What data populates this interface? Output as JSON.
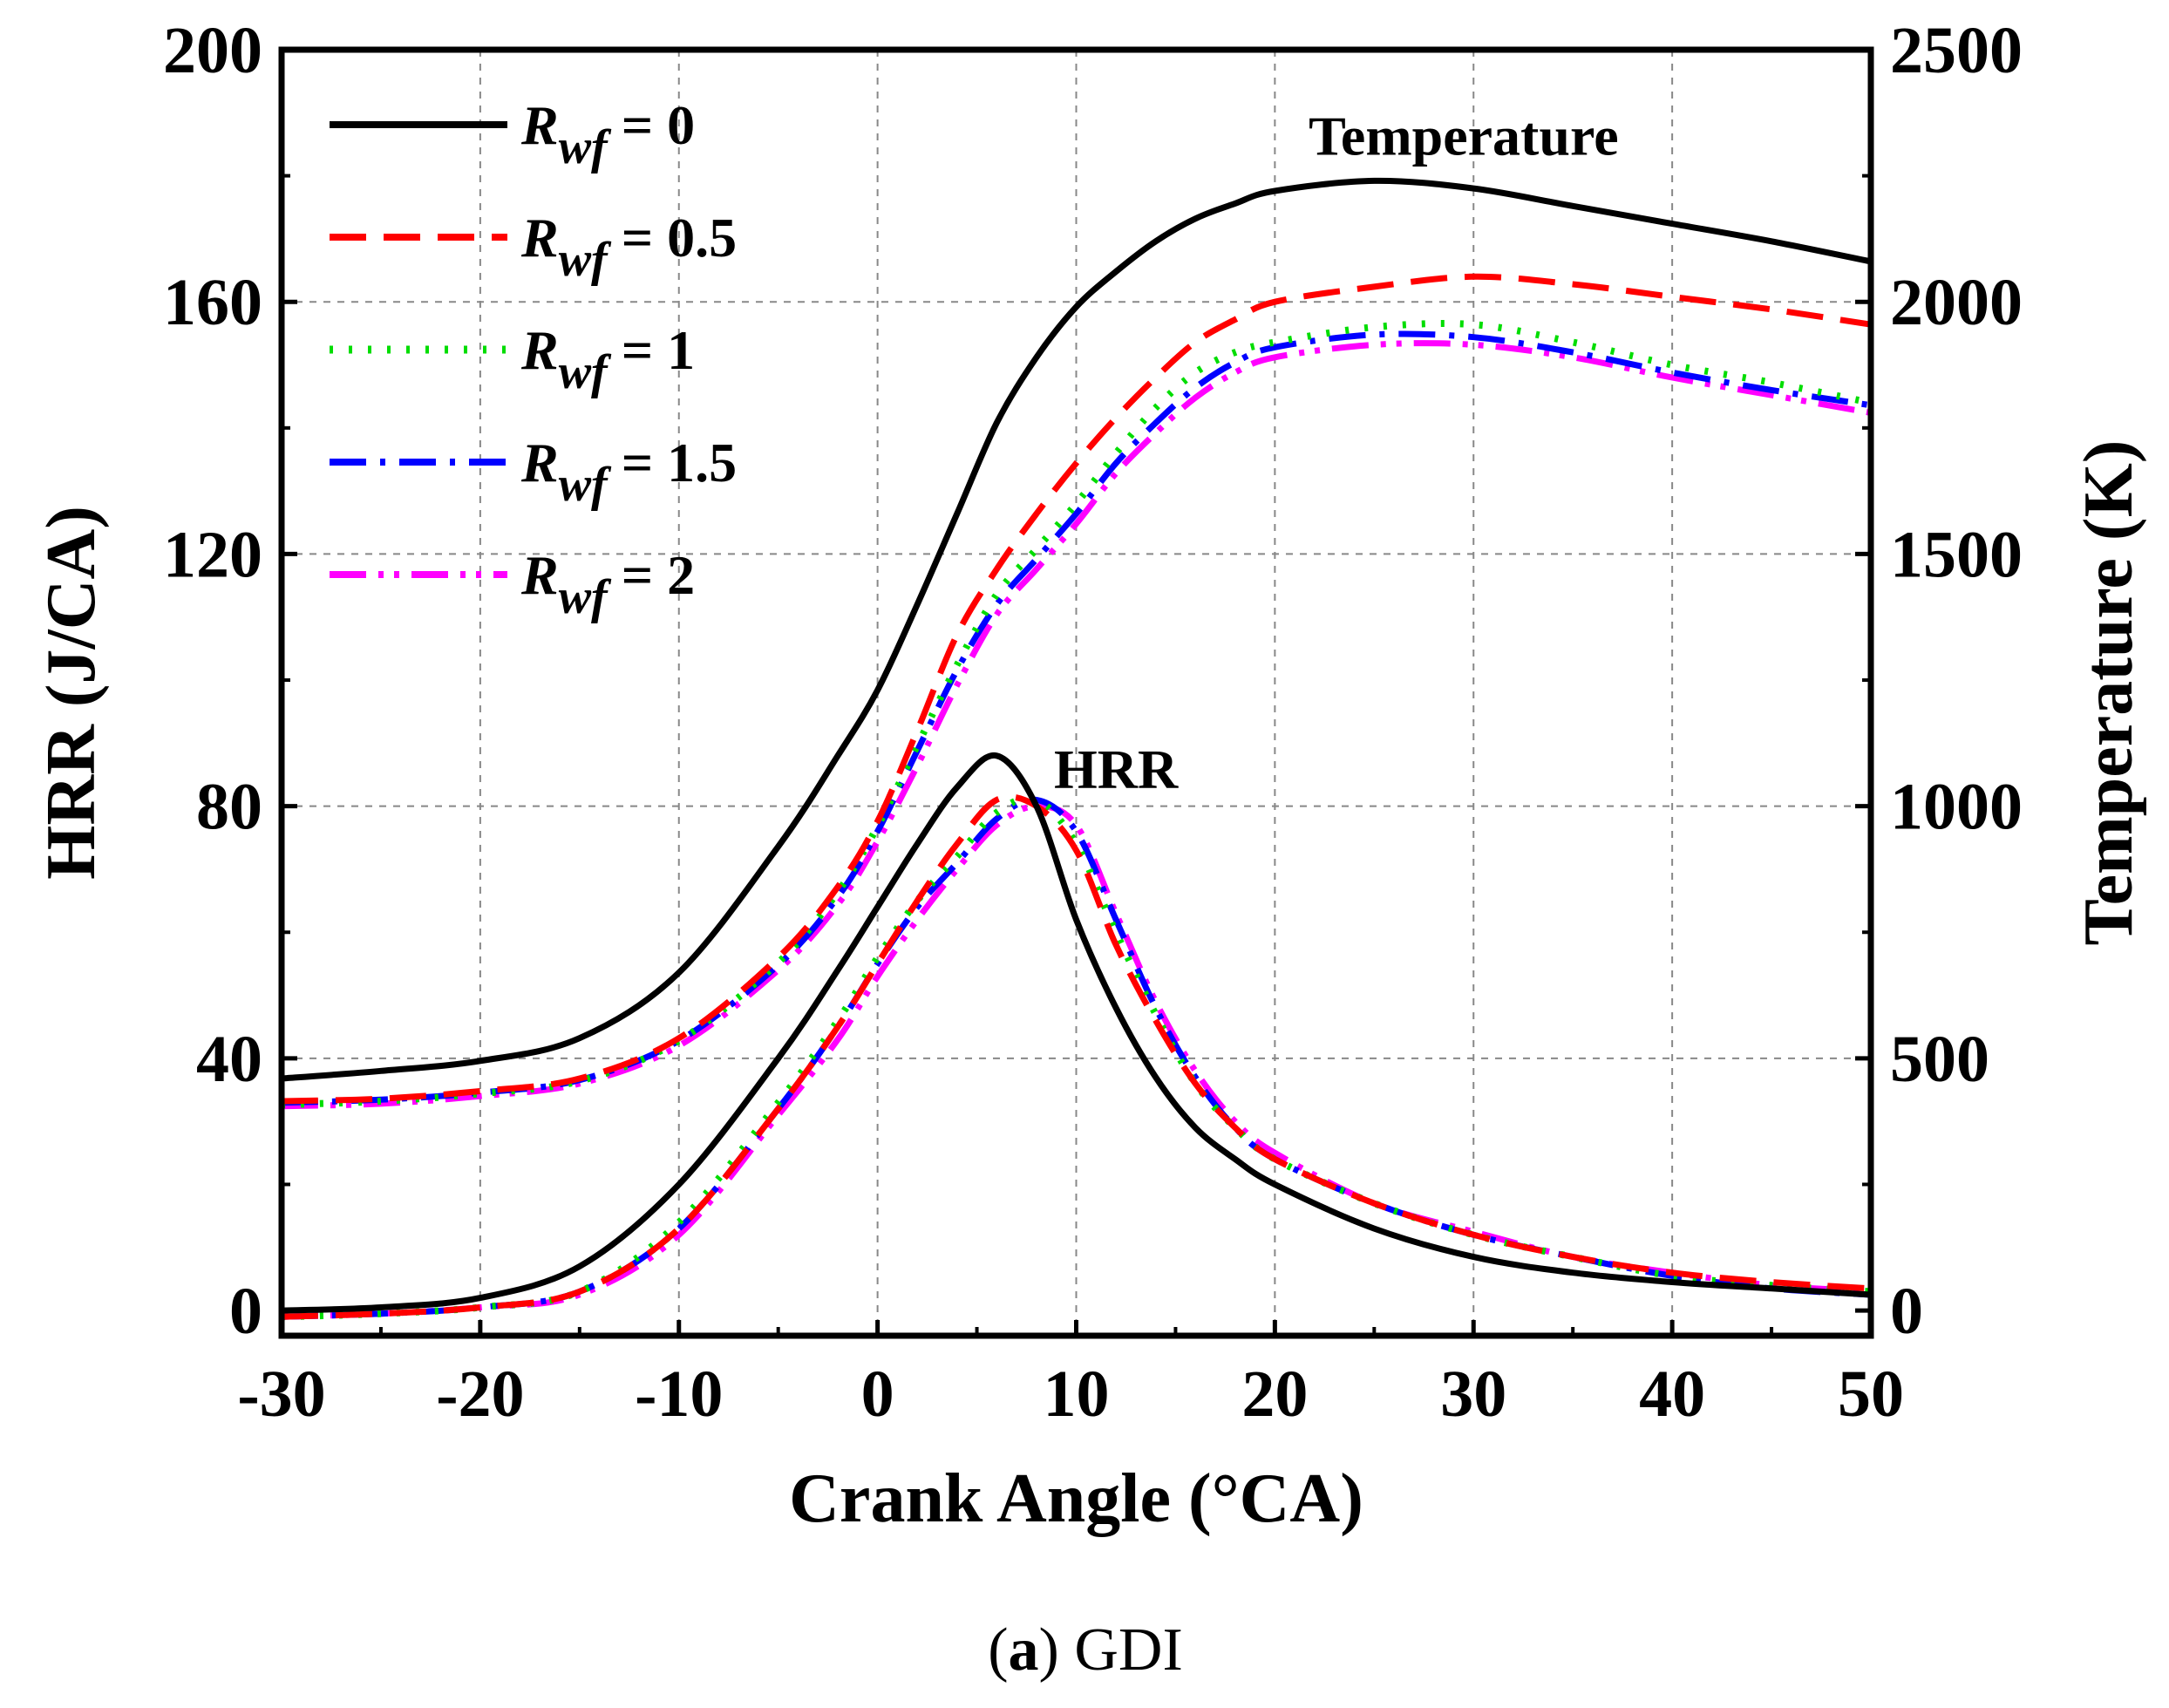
{
  "chart_data": {
    "type": "line",
    "caption": {
      "prefix": "(",
      "letter": "a",
      "suffix": ") GDI"
    },
    "xlabel": "Crank Angle (°CA)",
    "ylabel_left": "HRR (J/CA)",
    "ylabel_right": "Temperature (K)",
    "xlim": [
      -30,
      50
    ],
    "xticks": [
      -30,
      -20,
      -10,
      0,
      10,
      20,
      30,
      40,
      50
    ],
    "ylim_left": [
      -4,
      200
    ],
    "yticks_left": [
      0,
      40,
      80,
      120,
      160,
      200
    ],
    "ylim_right": [
      -50,
      2500
    ],
    "yticks_right": [
      0,
      500,
      1000,
      1500,
      2000,
      2500
    ],
    "grid": true,
    "legend_position": "top-left",
    "annotations": [
      {
        "text": "Temperature",
        "x": 29.5,
        "y_right": 2330
      },
      {
        "text": "HRR",
        "x": 12,
        "y_left": 86
      }
    ],
    "x": [
      -30,
      -25,
      -20,
      -15,
      -10,
      -5,
      -2,
      0,
      2,
      4,
      6,
      8,
      10,
      12,
      14,
      16,
      18,
      20,
      25,
      30,
      35,
      40,
      45,
      50
    ],
    "series": [
      {
        "legend_var": "R",
        "legend_sub": "wf",
        "legend_value": " = 0",
        "color": "#000000",
        "dash": "",
        "width": 7,
        "hrr": [
          0,
          0.5,
          2,
          7,
          20,
          40,
          54,
          64,
          74,
          83,
          88,
          80,
          62,
          48,
          37,
          29,
          24,
          20,
          13,
          8.5,
          6,
          4.5,
          3.5,
          2.5
        ],
        "temp": [
          460,
          475,
          495,
          540,
          670,
          920,
          1100,
          1230,
          1400,
          1580,
          1760,
          1890,
          1990,
          2060,
          2120,
          2165,
          2195,
          2220,
          2240,
          2225,
          2190,
          2155,
          2120,
          2080
        ]
      },
      {
        "legend_var": "R",
        "legend_sub": "wf",
        "legend_value": " = 0.5",
        "color": "#ff0000",
        "dash": "42,20",
        "width": 7,
        "hrr": [
          -1,
          -0.5,
          0.5,
          3,
          13,
          32,
          45,
          55,
          65,
          74,
          81,
          80,
          73,
          58,
          46,
          36,
          29,
          24,
          17,
          12,
          8.5,
          6,
          4.5,
          3.5
        ],
        "temp": [
          415,
          420,
          435,
          460,
          540,
          700,
          840,
          970,
          1150,
          1340,
          1470,
          1580,
          1680,
          1770,
          1850,
          1920,
          1965,
          2000,
          2030,
          2050,
          2035,
          2010,
          1985,
          1955
        ]
      },
      {
        "legend_var": "R",
        "legend_sub": "wf",
        "legend_value": " = 1",
        "color": "#00dd00",
        "dash": "4,18",
        "width": 8,
        "hrr": [
          -1,
          -0.5,
          0.5,
          3,
          14,
          33,
          46,
          56,
          65,
          72,
          79,
          81,
          74,
          60,
          47,
          36,
          29,
          24,
          17,
          12,
          8.5,
          5.5,
          4,
          3
        ],
        "temp": [
          408,
          415,
          430,
          455,
          535,
          690,
          830,
          960,
          1120,
          1280,
          1420,
          1510,
          1600,
          1700,
          1790,
          1860,
          1900,
          1920,
          1950,
          1955,
          1920,
          1875,
          1840,
          1800
        ]
      },
      {
        "legend_var": "R",
        "legend_sub": "wf",
        "legend_value": " = 1.5",
        "color": "#0000ff",
        "dash": "42,16,6,16",
        "width": 7,
        "hrr": [
          -1,
          -0.5,
          0.5,
          3,
          13,
          32,
          45,
          55,
          64,
          71,
          78,
          81,
          76,
          62,
          48,
          37,
          29,
          24,
          17,
          12,
          8.5,
          5.5,
          3.5,
          2.5
        ],
        "temp": [
          412,
          418,
          432,
          457,
          535,
          685,
          820,
          950,
          1110,
          1270,
          1400,
          1490,
          1580,
          1680,
          1760,
          1830,
          1880,
          1910,
          1935,
          1930,
          1900,
          1860,
          1825,
          1795
        ]
      },
      {
        "legend_var": "R",
        "legend_sub": "wf",
        "legend_value": " = 2",
        "color": "#ff00ff",
        "dash": "42,14,6,12,6,14",
        "width": 7,
        "hrr": [
          -1,
          -0.5,
          0.5,
          2.5,
          12,
          31,
          43,
          53,
          62,
          70,
          77,
          80,
          77,
          63,
          49,
          38,
          30,
          25,
          17,
          12.5,
          8.5,
          6,
          4,
          3
        ],
        "temp": [
          405,
          410,
          425,
          450,
          525,
          675,
          805,
          930,
          1080,
          1240,
          1380,
          1470,
          1560,
          1660,
          1740,
          1810,
          1860,
          1890,
          1915,
          1915,
          1890,
          1850,
          1815,
          1780
        ]
      }
    ]
  }
}
